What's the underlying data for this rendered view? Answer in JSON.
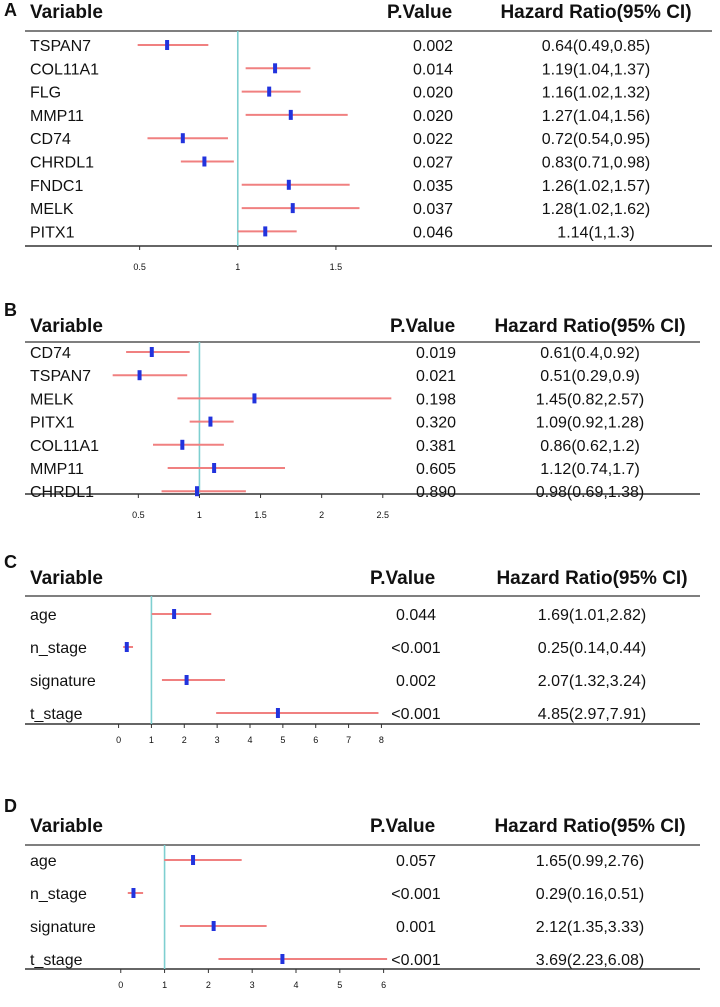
{
  "colors": {
    "ci": "#f08080",
    "point": "#2233dd",
    "refline": "#7ecfd0",
    "rule": "#333333"
  },
  "headers": {
    "variable": "Variable",
    "pvalue": "P.Value",
    "hr": "Hazard Ratio(95% CI)"
  },
  "chart_data": [
    {
      "type": "forest",
      "panel": "A",
      "xlim": [
        0.4,
        1.75
      ],
      "ref": 1,
      "ticks": [
        0.5,
        1,
        1.5
      ],
      "tick_labels": [
        "0.5",
        "1",
        "1.5"
      ],
      "rows": [
        {
          "variable": "TSPAN7",
          "hr": 0.64,
          "lo": 0.49,
          "hi": 0.85,
          "p": "0.002",
          "label": "0.64(0.49,0.85)"
        },
        {
          "variable": "COL11A1",
          "hr": 1.19,
          "lo": 1.04,
          "hi": 1.37,
          "p": "0.014",
          "label": "1.19(1.04,1.37)"
        },
        {
          "variable": "FLG",
          "hr": 1.16,
          "lo": 1.02,
          "hi": 1.32,
          "p": "0.020",
          "label": "1.16(1.02,1.32)"
        },
        {
          "variable": "MMP11",
          "hr": 1.27,
          "lo": 1.04,
          "hi": 1.56,
          "p": "0.020",
          "label": "1.27(1.04,1.56)"
        },
        {
          "variable": "CD74",
          "hr": 0.72,
          "lo": 0.54,
          "hi": 0.95,
          "p": "0.022",
          "label": "0.72(0.54,0.95)"
        },
        {
          "variable": "CHRDL1",
          "hr": 0.83,
          "lo": 0.71,
          "hi": 0.98,
          "p": "0.027",
          "label": "0.83(0.71,0.98)"
        },
        {
          "variable": "FNDC1",
          "hr": 1.26,
          "lo": 1.02,
          "hi": 1.57,
          "p": "0.035",
          "label": "1.26(1.02,1.57)"
        },
        {
          "variable": "MELK",
          "hr": 1.28,
          "lo": 1.02,
          "hi": 1.62,
          "p": "0.037",
          "label": "1.28(1.02,1.62)"
        },
        {
          "variable": "PITX1",
          "hr": 1.14,
          "lo": 1.0,
          "hi": 1.3,
          "p": "0.046",
          "label": "1.14(1,1.3)"
        }
      ]
    },
    {
      "type": "forest",
      "panel": "B",
      "xlim": [
        0.35,
        2.6
      ],
      "ref": 1,
      "ticks": [
        0.5,
        1,
        1.5,
        2,
        2.5
      ],
      "tick_labels": [
        "0.5",
        "1",
        "1.5",
        "2",
        "2.5"
      ],
      "rows": [
        {
          "variable": "CD74",
          "hr": 0.61,
          "lo": 0.4,
          "hi": 0.92,
          "p": "0.019",
          "label": "0.61(0.4,0.92)"
        },
        {
          "variable": "TSPAN7",
          "hr": 0.51,
          "lo": 0.29,
          "hi": 0.9,
          "p": "0.021",
          "label": "0.51(0.29,0.9)"
        },
        {
          "variable": "MELK",
          "hr": 1.45,
          "lo": 0.82,
          "hi": 2.57,
          "p": "0.198",
          "label": "1.45(0.82,2.57)"
        },
        {
          "variable": "PITX1",
          "hr": 1.09,
          "lo": 0.92,
          "hi": 1.28,
          "p": "0.320",
          "label": "1.09(0.92,1.28)"
        },
        {
          "variable": "COL11A1",
          "hr": 0.86,
          "lo": 0.62,
          "hi": 1.2,
          "p": "0.381",
          "label": "0.86(0.62,1.2)"
        },
        {
          "variable": "MMP11",
          "hr": 1.12,
          "lo": 0.74,
          "hi": 1.7,
          "p": "0.605",
          "label": "1.12(0.74,1.7)"
        },
        {
          "variable": "CHRDL1",
          "hr": 0.98,
          "lo": 0.69,
          "hi": 1.38,
          "p": "0.890",
          "label": "0.98(0.69,1.38)"
        }
      ]
    },
    {
      "type": "forest",
      "panel": "C",
      "xlim": [
        -0.2,
        8.2
      ],
      "ref": 1,
      "ticks": [
        0,
        1,
        2,
        3,
        4,
        5,
        6,
        7,
        8
      ],
      "tick_labels": [
        "0",
        "1",
        "2",
        "3",
        "4",
        "5",
        "6",
        "7",
        "8"
      ],
      "rows": [
        {
          "variable": "age",
          "hr": 1.69,
          "lo": 1.01,
          "hi": 2.82,
          "p": "0.044",
          "label": "1.69(1.01,2.82)"
        },
        {
          "variable": "n_stage",
          "hr": 0.25,
          "lo": 0.14,
          "hi": 0.44,
          "p": "<0.001",
          "label": "0.25(0.14,0.44)"
        },
        {
          "variable": "signature",
          "hr": 2.07,
          "lo": 1.32,
          "hi": 3.24,
          "p": "0.002",
          "label": "2.07(1.32,3.24)"
        },
        {
          "variable": "t_stage",
          "hr": 4.85,
          "lo": 2.97,
          "hi": 7.91,
          "p": "<0.001",
          "label": "4.85(2.97,7.91)"
        }
      ]
    },
    {
      "type": "forest",
      "panel": "D",
      "xlim": [
        -0.2,
        6.1
      ],
      "ref": 1,
      "ticks": [
        0,
        1,
        2,
        3,
        4,
        5,
        6
      ],
      "tick_labels": [
        "0",
        "1",
        "2",
        "3",
        "4",
        "5",
        "6"
      ],
      "rows": [
        {
          "variable": "age",
          "hr": 1.65,
          "lo": 0.99,
          "hi": 2.76,
          "p": "0.057",
          "label": "1.65(0.99,2.76)"
        },
        {
          "variable": "n_stage",
          "hr": 0.29,
          "lo": 0.16,
          "hi": 0.51,
          "p": "<0.001",
          "label": "0.29(0.16,0.51)"
        },
        {
          "variable": "signature",
          "hr": 2.12,
          "lo": 1.35,
          "hi": 3.33,
          "p": "0.001",
          "label": "2.12(1.35,3.33)"
        },
        {
          "variable": "t_stage",
          "hr": 3.69,
          "lo": 2.23,
          "hi": 6.08,
          "p": "<0.001",
          "label": "3.69(2.23,6.08)"
        }
      ]
    }
  ]
}
